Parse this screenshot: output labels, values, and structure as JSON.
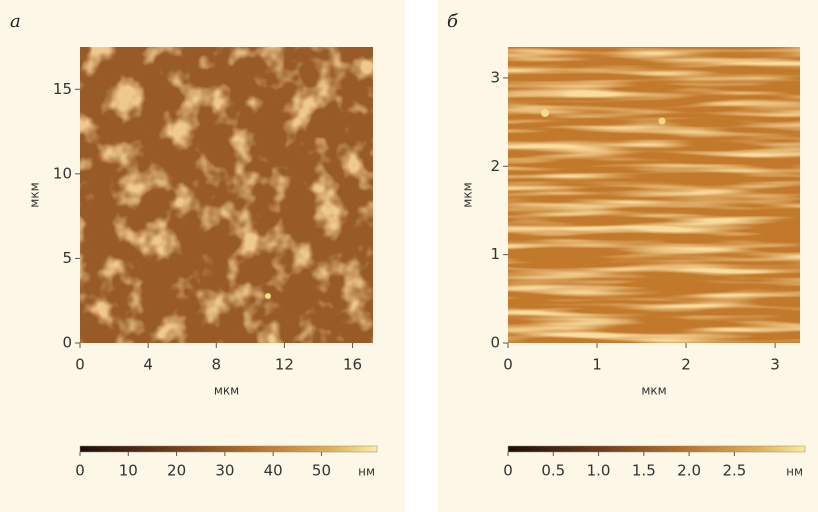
{
  "chart_data": [
    {
      "type": "image",
      "panel": "a",
      "xlabel": "мкм",
      "ylabel": "мкм",
      "xlim": [
        0,
        17.2
      ],
      "ylim": [
        0,
        17.5
      ],
      "xticks": [
        0,
        4,
        8,
        12,
        16
      ],
      "yticks": [
        0,
        5,
        10,
        15
      ],
      "colorbar": {
        "lim": [
          0,
          61.5
        ],
        "ticks": [
          0,
          10,
          20,
          30,
          40,
          50
        ],
        "unit": "нм"
      }
    },
    {
      "type": "image",
      "panel": "б",
      "xlabel": "мкм",
      "ylabel": "мкм",
      "xlim": [
        0,
        3.28
      ],
      "ylim": [
        0,
        3.35
      ],
      "xticks": [
        0,
        1,
        2,
        3
      ],
      "yticks": [
        0,
        1,
        2,
        3
      ],
      "colorbar": {
        "lim": [
          0,
          3.28
        ],
        "ticks": [
          0,
          0.5,
          {
            "value": 1,
            "label": "1.0"
          },
          1.5,
          {
            "value": 2,
            "label": "2.0"
          },
          2.5
        ],
        "unit": "нм"
      }
    }
  ]
}
